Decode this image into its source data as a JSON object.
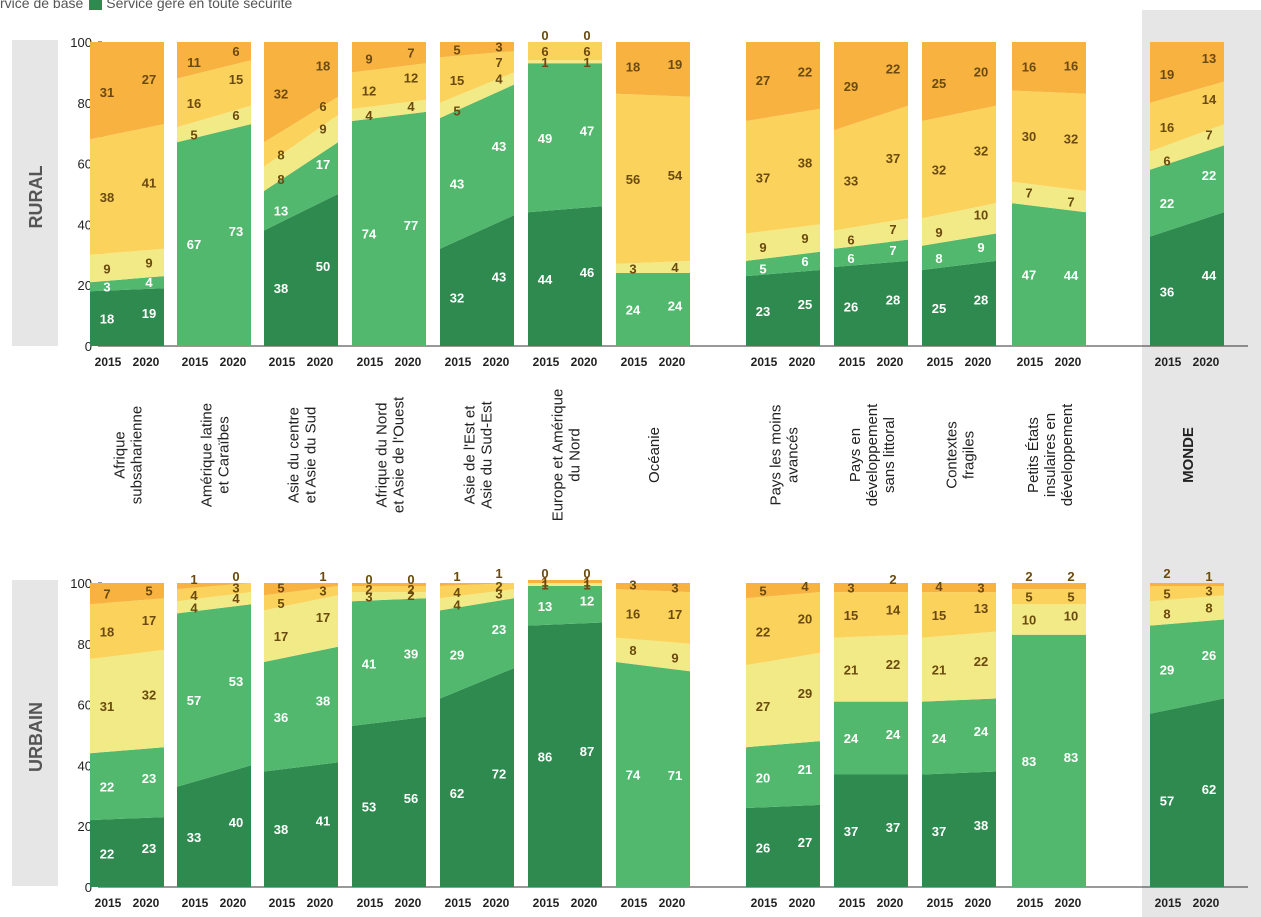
{
  "legend": {
    "items": [
      {
        "label": "Service de base",
        "color": "#f2ea86",
        "visible_text": "rvice de base"
      },
      {
        "label": "Service géré en toute sécurité",
        "color": "#2e8a4e"
      }
    ]
  },
  "colors": {
    "safely": "#2e8a4e",
    "basic": "#52b86e",
    "limited": "#f2ea86",
    "unimproved": "#fbd35c",
    "open": "#f8b240",
    "panel": "#e6e6e6",
    "label_light": "#ffffff",
    "label_dark": "#6b4a0f"
  },
  "chart_data": {
    "type": "bar",
    "stacked": true,
    "percent_axis": {
      "ylim": [
        0,
        100
      ],
      "ticks": [
        0,
        20,
        40,
        60,
        80,
        100
      ]
    },
    "panels": [
      {
        "name": "RURAL",
        "groups": [
          {
            "region": "Afrique subsaharienne",
            "years": [
              "2015",
              "2020"
            ],
            "stacks": [
              [
                18,
                3,
                9,
                38,
                31
              ],
              [
                19,
                4,
                9,
                41,
                27
              ]
            ]
          },
          {
            "region": "Amérique latine et Caraïbes",
            "years": [
              "2015",
              "2020"
            ],
            "stacks": [
              [
                null,
                67,
                5,
                16,
                11
              ],
              [
                null,
                73,
                6,
                15,
                6
              ]
            ]
          },
          {
            "region": "Asie du centre et Asie du Sud",
            "years": [
              "2015",
              "2020"
            ],
            "stacks": [
              [
                38,
                13,
                8,
                8,
                32
              ],
              [
                50,
                17,
                9,
                6,
                18
              ]
            ]
          },
          {
            "region": "Afrique du Nord et Asie de l'Ouest",
            "years": [
              "2015",
              "2020"
            ],
            "stacks": [
              [
                null,
                74,
                4,
                12,
                9
              ],
              [
                null,
                77,
                4,
                12,
                7
              ]
            ]
          },
          {
            "region": "Asie de l'Est et Asie du Sud-Est",
            "years": [
              "2015",
              "2020"
            ],
            "stacks": [
              [
                32,
                43,
                5,
                15,
                5
              ],
              [
                43,
                43,
                4,
                7,
                3
              ]
            ]
          },
          {
            "region": "Europe et Amérique du Nord",
            "years": [
              "2015",
              "2020"
            ],
            "stacks": [
              [
                44,
                49,
                1,
                6,
                0
              ],
              [
                46,
                47,
                1,
                6,
                0
              ]
            ]
          },
          {
            "region": "Océanie",
            "years": [
              "2015",
              "2020"
            ],
            "stacks": [
              [
                null,
                24,
                3,
                56,
                18
              ],
              [
                null,
                24,
                4,
                54,
                19
              ]
            ]
          },
          {
            "region": "Pays les moins avancés",
            "years": [
              "2015",
              "2020"
            ],
            "stacks": [
              [
                23,
                5,
                9,
                37,
                27
              ],
              [
                25,
                6,
                9,
                38,
                22
              ]
            ]
          },
          {
            "region": "Pays en développement sans littoral",
            "years": [
              "2015",
              "2020"
            ],
            "stacks": [
              [
                26,
                6,
                6,
                33,
                29
              ],
              [
                28,
                7,
                7,
                37,
                22
              ]
            ]
          },
          {
            "region": "Contextes fragiles",
            "years": [
              "2015",
              "2020"
            ],
            "stacks": [
              [
                25,
                8,
                9,
                32,
                25
              ],
              [
                28,
                9,
                10,
                32,
                20
              ]
            ]
          },
          {
            "region": "Petits États insulaires en développement",
            "years": [
              "2015",
              "2020"
            ],
            "stacks": [
              [
                null,
                47,
                7,
                30,
                16
              ],
              [
                null,
                44,
                7,
                32,
                16
              ]
            ]
          },
          {
            "region": "MONDE",
            "years": [
              "2015",
              "2020"
            ],
            "stacks": [
              [
                36,
                22,
                6,
                16,
                19
              ],
              [
                44,
                22,
                7,
                14,
                13
              ]
            ]
          }
        ]
      },
      {
        "name": "URBAIN",
        "groups": [
          {
            "region": "Afrique subsaharienne",
            "years": [
              "2015",
              "2020"
            ],
            "stacks": [
              [
                22,
                22,
                31,
                18,
                7
              ],
              [
                23,
                23,
                32,
                17,
                5
              ]
            ]
          },
          {
            "region": "Amérique latine et Caraïbes",
            "years": [
              "2015",
              "2020"
            ],
            "stacks": [
              [
                33,
                57,
                4,
                4,
                1
              ],
              [
                40,
                53,
                4,
                3,
                0
              ]
            ]
          },
          {
            "region": "Asie du centre et Asie du Sud",
            "years": [
              "2015",
              "2020"
            ],
            "stacks": [
              [
                38,
                36,
                17,
                5,
                5
              ],
              [
                41,
                38,
                17,
                3,
                1
              ]
            ]
          },
          {
            "region": "Afrique du Nord et Asie de l'Ouest",
            "years": [
              "2015",
              "2020"
            ],
            "stacks": [
              [
                53,
                41,
                3,
                2,
                0
              ],
              [
                56,
                39,
                2,
                2,
                0
              ]
            ]
          },
          {
            "region": "Asie de l'Est et Asie du Sud-Est",
            "years": [
              "2015",
              "2020"
            ],
            "stacks": [
              [
                62,
                29,
                4,
                4,
                1
              ],
              [
                72,
                23,
                3,
                2,
                1
              ]
            ]
          },
          {
            "region": "Europe et Amérique du Nord",
            "years": [
              "2015",
              "2020"
            ],
            "stacks": [
              [
                86,
                13,
                1,
                1,
                0
              ],
              [
                87,
                12,
                1,
                1,
                0
              ]
            ]
          },
          {
            "region": "Océanie",
            "years": [
              "2015",
              "2020"
            ],
            "stacks": [
              [
                null,
                74,
                8,
                16,
                3
              ],
              [
                null,
                71,
                9,
                17,
                3
              ]
            ]
          },
          {
            "region": "Pays les moins avancés",
            "years": [
              "2015",
              "2020"
            ],
            "stacks": [
              [
                26,
                20,
                27,
                22,
                5
              ],
              [
                27,
                21,
                29,
                20,
                4
              ]
            ]
          },
          {
            "region": "Pays en développement sans littoral",
            "years": [
              "2015",
              "2020"
            ],
            "stacks": [
              [
                37,
                24,
                21,
                15,
                3
              ],
              [
                37,
                24,
                22,
                14,
                2
              ]
            ]
          },
          {
            "region": "Contextes fragiles",
            "years": [
              "2015",
              "2020"
            ],
            "stacks": [
              [
                37,
                24,
                21,
                15,
                4
              ],
              [
                38,
                24,
                22,
                13,
                3
              ]
            ]
          },
          {
            "region": "Petits États insulaires en développement",
            "years": [
              "2015",
              "2020"
            ],
            "stacks": [
              [
                null,
                83,
                10,
                5,
                2
              ],
              [
                null,
                83,
                10,
                5,
                2
              ]
            ]
          },
          {
            "region": "MONDE",
            "years": [
              "2015",
              "2020"
            ],
            "stacks": [
              [
                57,
                29,
                8,
                5,
                2
              ],
              [
                62,
                26,
                8,
                3,
                1
              ]
            ]
          }
        ]
      }
    ],
    "region_labels": [
      [
        "Afrique",
        "subsaharienne"
      ],
      [
        "Amérique latine",
        "et Caraïbes"
      ],
      [
        "Asie du centre",
        "et Asie du Sud"
      ],
      [
        "Afrique du Nord",
        "et Asie de l'Ouest"
      ],
      [
        "Asie de l'Est et",
        "Asie du Sud-Est"
      ],
      [
        "Europe et Amérique",
        "du Nord"
      ],
      [
        "Océanie"
      ],
      [
        "Pays les moins",
        "avancés"
      ],
      [
        "Pays en",
        "développement",
        "sans littoral"
      ],
      [
        "Contextes",
        "fragiles"
      ],
      [
        "Petits États",
        "insulaires en",
        "développement"
      ],
      [
        "MONDE"
      ]
    ]
  }
}
